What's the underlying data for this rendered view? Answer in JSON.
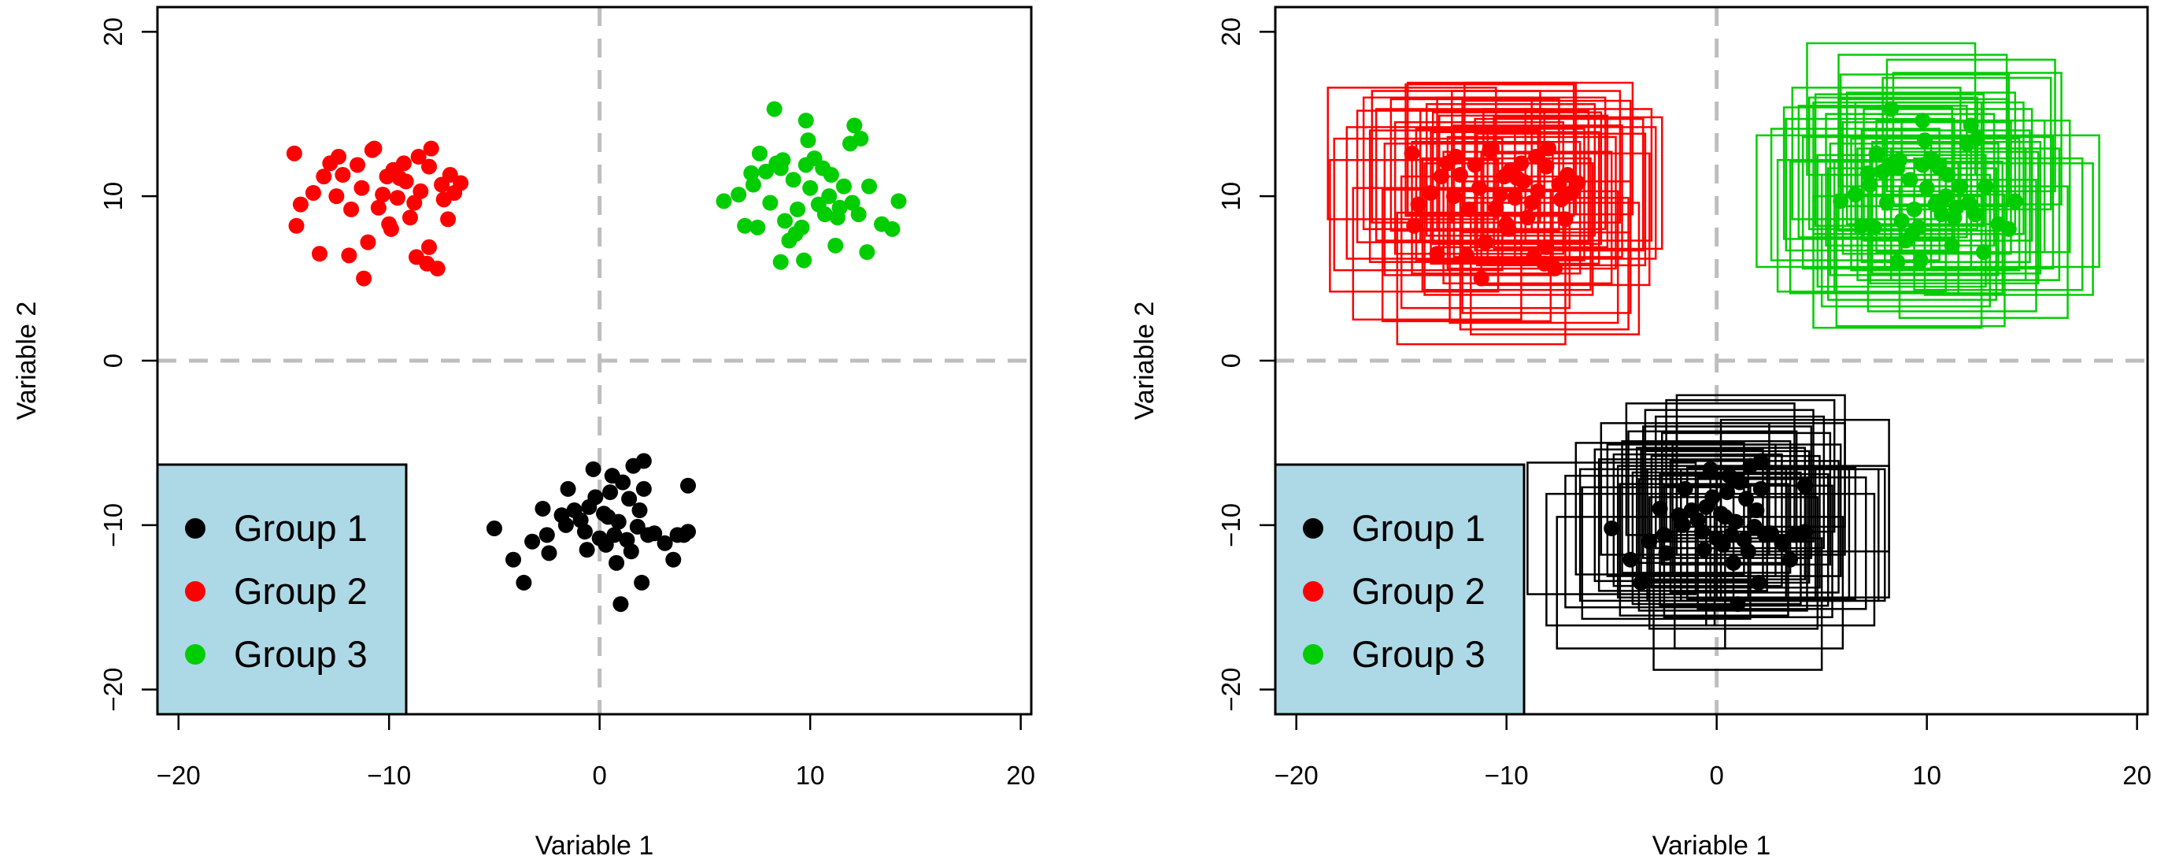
{
  "chart_data": [
    {
      "type": "scatter",
      "panel": "left",
      "xlabel": "Variable 1",
      "ylabel": "Variable 2",
      "xlim": [
        -21,
        20.5
      ],
      "ylim": [
        -21.5,
        21.5
      ],
      "xticks": [
        -20,
        -10,
        0,
        10,
        20
      ],
      "yticks": [
        -20,
        -10,
        0,
        10,
        20
      ],
      "xtick_labels": [
        "−20",
        "−10",
        "0",
        "10",
        "20"
      ],
      "ytick_labels": [
        "−20",
        "−10",
        "0",
        "10",
        "20"
      ],
      "reference_lines": {
        "x": 0,
        "y": 0
      },
      "show_boxes": false,
      "legend": {
        "placement": "bottom-left",
        "background": "#add8e6",
        "entries": [
          {
            "label": "Group 1",
            "color": "#000000"
          },
          {
            "label": "Group 2",
            "color": "#ff0000"
          },
          {
            "label": "Group 3",
            "color": "#00cd00"
          }
        ]
      },
      "series": [
        {
          "name": "Group 1",
          "color": "#000000",
          "points": [
            [
              -5.0,
              -10.2
            ],
            [
              -4.1,
              -12.1
            ],
            [
              -3.6,
              -13.5
            ],
            [
              -3.2,
              -11.0
            ],
            [
              -2.7,
              -9.0
            ],
            [
              -2.5,
              -10.6
            ],
            [
              -2.4,
              -11.7
            ],
            [
              -1.8,
              -9.4
            ],
            [
              -1.6,
              -10.0
            ],
            [
              -1.5,
              -7.8
            ],
            [
              -1.2,
              -9.1
            ],
            [
              -0.9,
              -9.7
            ],
            [
              -0.7,
              -10.4
            ],
            [
              -0.6,
              -11.5
            ],
            [
              -0.3,
              -6.6
            ],
            [
              -0.2,
              -8.3
            ],
            [
              0.0,
              -10.8
            ],
            [
              0.2,
              -9.3
            ],
            [
              0.3,
              -11.2
            ],
            [
              0.5,
              -8.0
            ],
            [
              0.6,
              -7.0
            ],
            [
              0.7,
              -10.6
            ],
            [
              0.8,
              -12.3
            ],
            [
              0.9,
              -9.8
            ],
            [
              1.0,
              -14.8
            ],
            [
              1.1,
              -7.4
            ],
            [
              1.3,
              -10.9
            ],
            [
              1.4,
              -8.4
            ],
            [
              1.5,
              -11.6
            ],
            [
              1.6,
              -6.4
            ],
            [
              1.8,
              -10.1
            ],
            [
              1.9,
              -9.1
            ],
            [
              2.0,
              -13.5
            ],
            [
              2.1,
              -7.8
            ],
            [
              2.3,
              -10.6
            ],
            [
              2.1,
              -6.1
            ],
            [
              2.6,
              -10.5
            ],
            [
              3.1,
              -11.1
            ],
            [
              3.5,
              -12.1
            ],
            [
              3.7,
              -10.6
            ],
            [
              4.0,
              -10.6
            ],
            [
              4.2,
              -10.4
            ],
            [
              4.2,
              -7.6
            ],
            [
              0.4,
              -9.5
            ],
            [
              -0.5,
              -8.9
            ]
          ]
        },
        {
          "name": "Group 2",
          "color": "#ff0000",
          "points": [
            [
              -14.5,
              12.6
            ],
            [
              -14.4,
              8.2
            ],
            [
              -14.2,
              9.5
            ],
            [
              -13.6,
              10.2
            ],
            [
              -13.3,
              6.5
            ],
            [
              -13.1,
              11.2
            ],
            [
              -12.8,
              12.0
            ],
            [
              -12.5,
              10.0
            ],
            [
              -12.4,
              12.4
            ],
            [
              -12.2,
              11.3
            ],
            [
              -11.9,
              6.4
            ],
            [
              -11.8,
              9.2
            ],
            [
              -11.5,
              11.9
            ],
            [
              -11.3,
              10.5
            ],
            [
              -11.2,
              5.0
            ],
            [
              -11.0,
              7.2
            ],
            [
              -10.8,
              12.8
            ],
            [
              -10.7,
              12.9
            ],
            [
              -10.5,
              9.3
            ],
            [
              -10.3,
              10.1
            ],
            [
              -10.1,
              11.2
            ],
            [
              -10.0,
              8.3
            ],
            [
              -9.9,
              8.0
            ],
            [
              -9.8,
              11.6
            ],
            [
              -9.6,
              9.9
            ],
            [
              -9.5,
              11.1
            ],
            [
              -9.3,
              12.0
            ],
            [
              -9.2,
              10.9
            ],
            [
              -8.8,
              9.6
            ],
            [
              -8.6,
              12.4
            ],
            [
              -8.7,
              6.3
            ],
            [
              -8.5,
              10.3
            ],
            [
              -8.1,
              11.8
            ],
            [
              -8.2,
              5.9
            ],
            [
              -8.0,
              12.9
            ],
            [
              -8.1,
              6.9
            ],
            [
              -7.7,
              5.6
            ],
            [
              -7.5,
              10.7
            ],
            [
              -7.4,
              9.8
            ],
            [
              -7.2,
              8.6
            ],
            [
              -7.1,
              11.3
            ],
            [
              -6.9,
              10.2
            ],
            [
              -6.6,
              10.8
            ],
            [
              -9.0,
              8.7
            ]
          ]
        },
        {
          "name": "Group 3",
          "color": "#00cd00",
          "points": [
            [
              5.9,
              9.7
            ],
            [
              6.6,
              10.1
            ],
            [
              6.9,
              8.2
            ],
            [
              7.2,
              11.4
            ],
            [
              7.3,
              10.7
            ],
            [
              7.5,
              8.1
            ],
            [
              7.6,
              12.6
            ],
            [
              7.9,
              11.5
            ],
            [
              8.1,
              9.6
            ],
            [
              8.4,
              12.0
            ],
            [
              8.3,
              15.3
            ],
            [
              8.6,
              6.0
            ],
            [
              8.6,
              11.7
            ],
            [
              8.7,
              12.2
            ],
            [
              8.8,
              8.5
            ],
            [
              9.0,
              7.3
            ],
            [
              9.2,
              11.0
            ],
            [
              9.3,
              7.7
            ],
            [
              9.4,
              9.2
            ],
            [
              9.6,
              8.1
            ],
            [
              9.7,
              6.1
            ],
            [
              9.8,
              11.9
            ],
            [
              9.9,
              13.4
            ],
            [
              9.8,
              14.6
            ],
            [
              10.0,
              10.5
            ],
            [
              10.2,
              12.3
            ],
            [
              10.4,
              9.5
            ],
            [
              10.6,
              11.7
            ],
            [
              10.7,
              8.9
            ],
            [
              10.9,
              10.0
            ],
            [
              11.0,
              11.3
            ],
            [
              11.2,
              7.0
            ],
            [
              11.3,
              8.7
            ],
            [
              11.4,
              9.3
            ],
            [
              11.6,
              10.6
            ],
            [
              11.9,
              13.2
            ],
            [
              12.0,
              9.6
            ],
            [
              12.1,
              14.3
            ],
            [
              12.3,
              8.9
            ],
            [
              12.4,
              13.5
            ],
            [
              12.7,
              6.6
            ],
            [
              12.8,
              10.6
            ],
            [
              13.4,
              8.3
            ],
            [
              13.9,
              8.0
            ],
            [
              14.2,
              9.7
            ]
          ]
        }
      ]
    },
    {
      "type": "scatter",
      "panel": "right",
      "xlabel": "Variable 1",
      "ylabel": "Variable 2",
      "xlim": [
        -21,
        20.5
      ],
      "ylim": [
        -21.5,
        21.5
      ],
      "xticks": [
        -20,
        -10,
        0,
        10,
        20
      ],
      "yticks": [
        -20,
        -10,
        0,
        10,
        20
      ],
      "xtick_labels": [
        "−20",
        "−10",
        "0",
        "10",
        "20"
      ],
      "ytick_labels": [
        "−20",
        "−10",
        "0",
        "10",
        "20"
      ],
      "reference_lines": {
        "x": 0,
        "y": 0
      },
      "show_boxes": true,
      "box_half_width": 4,
      "box_half_height": 4,
      "legend": {
        "placement": "bottom-left",
        "background": "#add8e6",
        "entries": [
          {
            "label": "Group 1",
            "color": "#000000"
          },
          {
            "label": "Group 2",
            "color": "#ff0000"
          },
          {
            "label": "Group 3",
            "color": "#00cd00"
          }
        ]
      },
      "series_ref": "same as left panel"
    }
  ]
}
